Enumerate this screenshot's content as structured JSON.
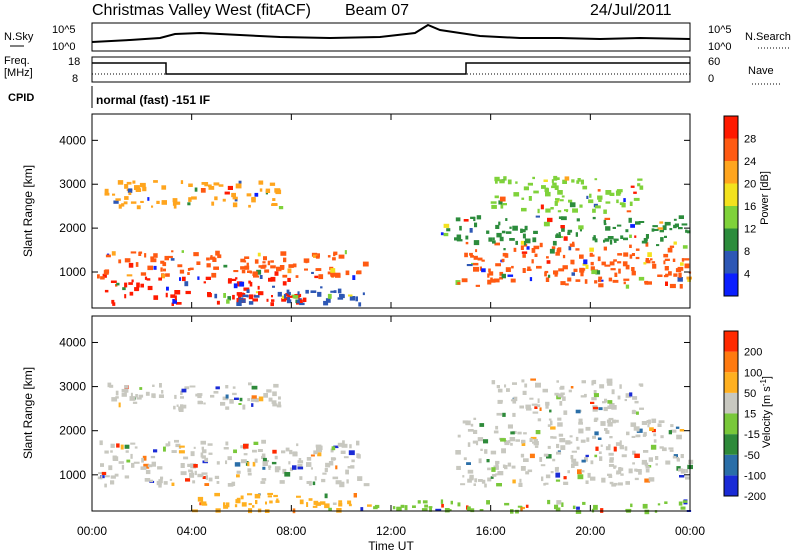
{
  "header": {
    "title": "Christmas Valley West (fitACF)",
    "beam": "Beam 07",
    "date": "24/Jul/2011"
  },
  "top_panels": {
    "nsky_label": "N.Sky",
    "nsky_ticks": [
      "10^5",
      "10^0"
    ],
    "nsearch_label": "N.Search",
    "nsearch_ticks": [
      "10^5",
      "10^0"
    ],
    "freq_label": "Freq.",
    "freq_unit": "[MHz]",
    "freq_ticks": [
      "18",
      "8"
    ],
    "nave_label": "Nave",
    "nave_ticks": [
      "60",
      "0"
    ],
    "cpid_label": "CPID",
    "cpid_text": "normal (fast) -151 IF"
  },
  "chart_data": [
    {
      "type": "heatmap",
      "name": "power",
      "xlabel": "",
      "ylabel": "Slant Range [km]",
      "x_ticks": [
        "00:00",
        "04:00",
        "08:00",
        "12:00",
        "16:00",
        "20:00",
        "00:00"
      ],
      "xlim_hours": [
        0,
        24
      ],
      "y_ticks": [
        1000,
        2000,
        3000,
        4000
      ],
      "ylim": [
        180,
        4600
      ],
      "colorbar": {
        "label": "Power [dB]",
        "ticks": [
          "4",
          "8",
          "12",
          "16",
          "20",
          "24",
          "28"
        ],
        "colors": [
          "#0b1fff",
          "#2d57b5",
          "#2c8c3c",
          "#7fd23a",
          "#f3e21e",
          "#ffa51e",
          "#ff5a12",
          "#ff1a00"
        ]
      },
      "regions": [
        {
          "t0": 0.2,
          "t1": 11.0,
          "r0": 900,
          "r1": 1500,
          "color": "#ff5a12"
        },
        {
          "t0": 0.5,
          "t1": 8.5,
          "r0": 300,
          "r1": 900,
          "color": "#ff1a00"
        },
        {
          "t0": 5.5,
          "t1": 11.0,
          "r0": 300,
          "r1": 700,
          "color": "#2d57b5"
        },
        {
          "t0": 0.5,
          "t1": 7.5,
          "r0": 2500,
          "r1": 3100,
          "color": "#ffa51e"
        },
        {
          "t0": 14.5,
          "t1": 24.0,
          "r0": 700,
          "r1": 1700,
          "color": "#ff5a12"
        },
        {
          "t0": 16.0,
          "t1": 22.0,
          "r0": 2400,
          "r1": 3200,
          "color": "#7fd23a"
        },
        {
          "t0": 14.0,
          "t1": 24.0,
          "r0": 1700,
          "r1": 2300,
          "color": "#2c8c3c"
        }
      ]
    },
    {
      "type": "heatmap",
      "name": "velocity",
      "xlabel": "Time UT",
      "ylabel": "Slant Range [km]",
      "x_ticks": [
        "00:00",
        "04:00",
        "08:00",
        "12:00",
        "16:00",
        "20:00",
        "00:00"
      ],
      "xlim_hours": [
        0,
        24
      ],
      "y_ticks": [
        1000,
        2000,
        3000,
        4000
      ],
      "ylim": [
        180,
        4600
      ],
      "colorbar": {
        "label": "Velocity [m s^-1]",
        "ticks": [
          "200",
          "100",
          "50",
          "15",
          "-15",
          "-50",
          "-100",
          "-200"
        ],
        "colors": [
          "#1a2bd6",
          "#2a6ea8",
          "#2e8a3a",
          "#79c83a",
          "#c8c8c0",
          "#ffb020",
          "#ff7a10",
          "#ff2a00"
        ]
      },
      "regions": [
        {
          "t0": 0.2,
          "t1": 11.0,
          "r0": 800,
          "r1": 1800,
          "color": "#c8c8c0"
        },
        {
          "t0": 0.5,
          "t1": 7.5,
          "r0": 2500,
          "r1": 3100,
          "color": "#c8c8c0"
        },
        {
          "t0": 14.5,
          "t1": 24.0,
          "r0": 800,
          "r1": 2300,
          "color": "#c8c8c0"
        },
        {
          "t0": 16.0,
          "t1": 22.0,
          "r0": 2400,
          "r1": 3200,
          "color": "#c8c8c0"
        },
        {
          "t0": 4.0,
          "t1": 11.0,
          "r0": 200,
          "r1": 600,
          "color": "#ffb020"
        },
        {
          "t0": 11.0,
          "t1": 24.0,
          "r0": 200,
          "r1": 450,
          "color": "#79c83a"
        }
      ]
    }
  ]
}
